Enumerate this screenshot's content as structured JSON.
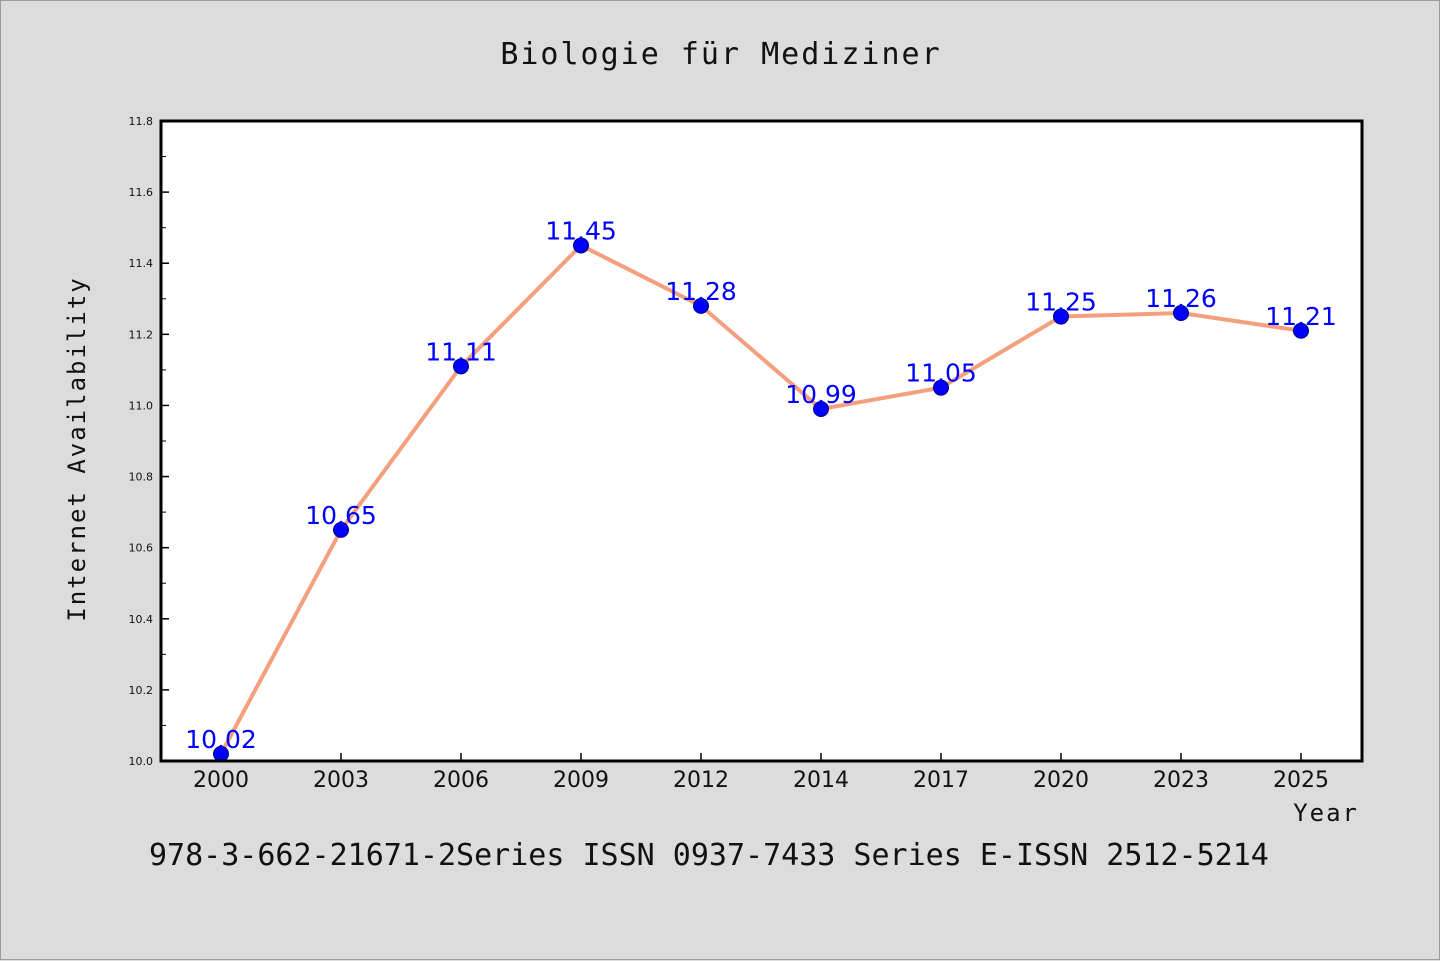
{
  "colors": {
    "background": "#dcdcdc",
    "plot_background": "#ffffff",
    "line": "#f4a07e",
    "marker": "#0000ff",
    "data_label": "#0000ff"
  },
  "footer": "978-3-662-21671-2Series ISSN 0937-7433 Series E-ISSN 2512-5214",
  "chart_data": {
    "type": "line",
    "title": "Biologie für Mediziner",
    "xlabel": "Year",
    "ylabel": "Internet Availability",
    "categories": [
      "2000",
      "2003",
      "2006",
      "2009",
      "2012",
      "2014",
      "2017",
      "2020",
      "2023",
      "2025"
    ],
    "series": [
      {
        "values": [
          10.02,
          10.65,
          11.11,
          11.45,
          11.28,
          10.99,
          11.05,
          11.25,
          11.26,
          11.21
        ],
        "labels": [
          "10.02",
          "10.65",
          "11.11",
          "11.45",
          "11.28",
          "10.99",
          "11.05",
          "11.25",
          "11.26",
          "11.21"
        ]
      }
    ],
    "ylim": [
      10.0,
      11.8
    ],
    "yticks": [
      "10.0",
      "10.2",
      "10.4",
      "10.6",
      "10.8",
      "11.0",
      "11.2",
      "11.4",
      "11.6",
      "11.8"
    ],
    "grid": false,
    "legend": "none"
  }
}
